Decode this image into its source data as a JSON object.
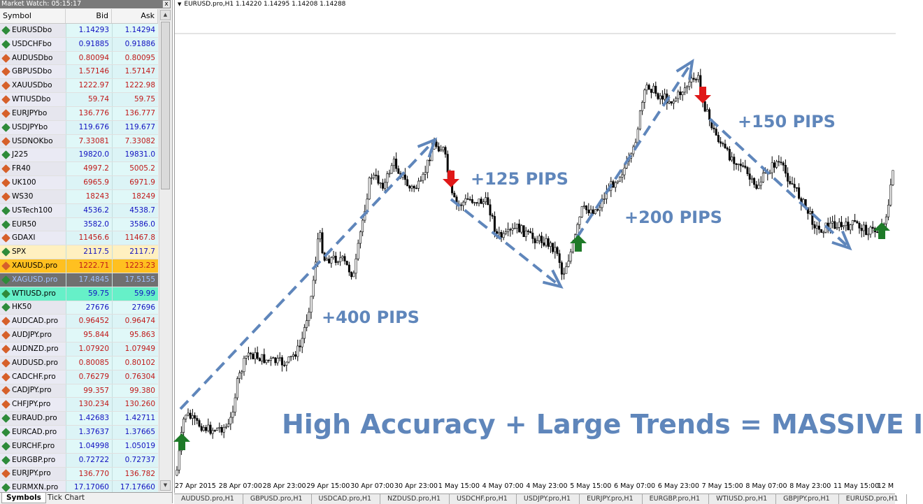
{
  "market_watch": {
    "title": "Market Watch: 05:15:17",
    "close": "x",
    "columns": {
      "symbol": "Symbol",
      "bid": "Bid",
      "ask": "Ask"
    },
    "rows": [
      {
        "symbol": "EURUSDbo",
        "bid": "1.14293",
        "ask": "1.14294",
        "trend": "up"
      },
      {
        "symbol": "USDCHFbo",
        "bid": "0.91885",
        "ask": "0.91886",
        "trend": "up"
      },
      {
        "symbol": "AUDUSDbo",
        "bid": "0.80094",
        "ask": "0.80095",
        "trend": "down"
      },
      {
        "symbol": "GBPUSDbo",
        "bid": "1.57146",
        "ask": "1.57147",
        "trend": "down"
      },
      {
        "symbol": "XAUUSDbo",
        "bid": "1222.97",
        "ask": "1222.98",
        "trend": "down"
      },
      {
        "symbol": "WTIUSDbo",
        "bid": "59.74",
        "ask": "59.75",
        "trend": "down"
      },
      {
        "symbol": "EURJPYbo",
        "bid": "136.776",
        "ask": "136.777",
        "trend": "down"
      },
      {
        "symbol": "USDJPYbo",
        "bid": "119.676",
        "ask": "119.677",
        "trend": "up"
      },
      {
        "symbol": "USDNOKbo",
        "bid": "7.33081",
        "ask": "7.33082",
        "trend": "down"
      },
      {
        "symbol": "J225",
        "bid": "19820.0",
        "ask": "19831.0",
        "trend": "up"
      },
      {
        "symbol": "FR40",
        "bid": "4997.2",
        "ask": "5005.2",
        "trend": "down"
      },
      {
        "symbol": "UK100",
        "bid": "6965.9",
        "ask": "6971.9",
        "trend": "down"
      },
      {
        "symbol": "WS30",
        "bid": "18243",
        "ask": "18249",
        "trend": "down"
      },
      {
        "symbol": "USTech100",
        "bid": "4536.2",
        "ask": "4538.7",
        "trend": "up"
      },
      {
        "symbol": "EUR50",
        "bid": "3582.0",
        "ask": "3586.0",
        "trend": "up"
      },
      {
        "symbol": "GDAXI",
        "bid": "11456.6",
        "ask": "11467.8",
        "trend": "down"
      },
      {
        "symbol": "SPX",
        "bid": "2117.5",
        "ask": "2117.7",
        "trend": "up",
        "highlight": "yellow"
      },
      {
        "symbol": "XAUUSD.pro",
        "bid": "1222.71",
        "ask": "1223.23",
        "trend": "down",
        "highlight": "orange"
      },
      {
        "symbol": "XAGUSD.pro",
        "bid": "17.4845",
        "ask": "17.5155",
        "trend": "up",
        "highlight": "grey"
      },
      {
        "symbol": "WTIUSD.pro",
        "bid": "59.75",
        "ask": "59.99",
        "trend": "up",
        "highlight": "green"
      },
      {
        "symbol": "HK50",
        "bid": "27676",
        "ask": "27696",
        "trend": "up"
      },
      {
        "symbol": "AUDCAD.pro",
        "bid": "0.96452",
        "ask": "0.96474",
        "trend": "down"
      },
      {
        "symbol": "AUDJPY.pro",
        "bid": "95.844",
        "ask": "95.863",
        "trend": "down"
      },
      {
        "symbol": "AUDNZD.pro",
        "bid": "1.07920",
        "ask": "1.07949",
        "trend": "down"
      },
      {
        "symbol": "AUDUSD.pro",
        "bid": "0.80085",
        "ask": "0.80102",
        "trend": "down"
      },
      {
        "symbol": "CADCHF.pro",
        "bid": "0.76279",
        "ask": "0.76304",
        "trend": "down"
      },
      {
        "symbol": "CADJPY.pro",
        "bid": "99.357",
        "ask": "99.380",
        "trend": "down"
      },
      {
        "symbol": "CHFJPY.pro",
        "bid": "130.234",
        "ask": "130.260",
        "trend": "down"
      },
      {
        "symbol": "EURAUD.pro",
        "bid": "1.42683",
        "ask": "1.42711",
        "trend": "up"
      },
      {
        "symbol": "EURCAD.pro",
        "bid": "1.37637",
        "ask": "1.37665",
        "trend": "up"
      },
      {
        "symbol": "EURCHF.pro",
        "bid": "1.04998",
        "ask": "1.05019",
        "trend": "up"
      },
      {
        "symbol": "EURGBP.pro",
        "bid": "0.72722",
        "ask": "0.72737",
        "trend": "up"
      },
      {
        "symbol": "EURJPY.pro",
        "bid": "136.770",
        "ask": "136.782",
        "trend": "down"
      },
      {
        "symbol": "EURMXN.pro",
        "bid": "17.17060",
        "ask": "17.17660",
        "trend": "up"
      }
    ],
    "tabs": [
      "Symbols",
      "Tick Chart"
    ]
  },
  "chart": {
    "info_marker": "▼",
    "info": "EURUSD.pro,H1  1.14220 1.14295 1.14208 1.14288",
    "time_labels": [
      "27 Apr 2015",
      "28 Apr 07:00",
      "28 Apr 23:00",
      "29 Apr 15:00",
      "30 Apr 07:00",
      "30 Apr 23:00",
      "1 May 15:00",
      "4 May 07:00",
      "4 May 23:00",
      "5 May 15:00",
      "6 May 07:00",
      "6 May 23:00",
      "7 May 15:00",
      "8 May 07:00",
      "8 May 23:00",
      "11 May 15:00",
      "12 M"
    ],
    "annotations": {
      "pips_400": "+400 PIPS",
      "pips_125": "+125 PIPS",
      "pips_200": "+200 PIPS",
      "pips_150": "+150 PIPS",
      "headline": "High Accuracy + Large Trends = MASSIVE I"
    },
    "colors": {
      "annotation": "#5f86bb",
      "buy_arrow": "#1e7a28",
      "sell_arrow": "#e01818",
      "bars": "#000000"
    }
  },
  "symbol_tabs": [
    "AUDUSD.pro,H1",
    "GBPUSD.pro,H1",
    "USDCAD.pro,H1",
    "NZDUSD.pro,H1",
    "USDCHF.pro,H1",
    "USDJPY.pro,H1",
    "EURJPY.pro,H1",
    "EURGBP.pro,H1",
    "WTIUSD.pro,H1",
    "GBPJPY.pro,H1",
    "EURUSD.pro,H1"
  ]
}
